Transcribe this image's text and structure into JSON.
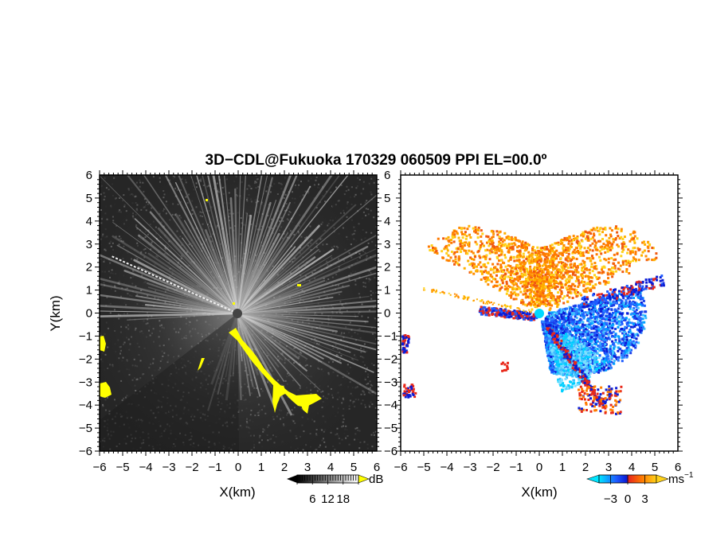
{
  "figure": {
    "title": "3D−CDL@Fukuoka 170329 060509 PPI EL=00.0º"
  },
  "chart_data": [
    {
      "type": "heatmap",
      "panel": "left",
      "quantity": "dB",
      "xlabel": "X(km)",
      "ylabel": "Y(km)",
      "xlim": [
        -6,
        6
      ],
      "ylim": [
        -6,
        6
      ],
      "x_ticks": [
        "−6",
        "−5",
        "−4",
        "−3",
        "−2",
        "−1",
        "0",
        "1",
        "2",
        "3",
        "4",
        "5",
        "6"
      ],
      "y_ticks": [
        "6",
        "5",
        "4",
        "3",
        "2",
        "1",
        "0",
        "−1",
        "−2",
        "−3",
        "−4",
        "−5",
        "−6"
      ],
      "grid": false,
      "colorbar": {
        "unit": "dB",
        "tick_labels": [
          "6",
          "12",
          "18"
        ],
        "tick_values": [
          6,
          12,
          18
        ],
        "range": [
          0,
          24
        ],
        "colormap": "grayscale",
        "low_color": "#000000",
        "high_color": "#ffffff",
        "out_of_range_color": "#ffff00"
      }
    },
    {
      "type": "heatmap",
      "panel": "right",
      "quantity": "Doppler velocity",
      "xlabel": "X(km)",
      "xlim": [
        -6,
        6
      ],
      "ylim": [
        -6,
        6
      ],
      "x_ticks": [
        "−6",
        "−5",
        "−4",
        "−3",
        "−2",
        "−1",
        "0",
        "1",
        "2",
        "3",
        "4",
        "5",
        "6"
      ],
      "grid": false,
      "colorbar": {
        "unit": "ms",
        "unit_superscript": "−1",
        "tick_labels": [
          "−3",
          "0",
          "3"
        ],
        "tick_values": [
          -3,
          0,
          3
        ],
        "range": [
          -5,
          5
        ],
        "colormap": "cyan-blue-red-orange-yellow",
        "colors": [
          "#00e5ff",
          "#1e5cff",
          "#0a1cd6",
          "#e8281a",
          "#ff7a00",
          "#ffd21a"
        ]
      }
    }
  ]
}
